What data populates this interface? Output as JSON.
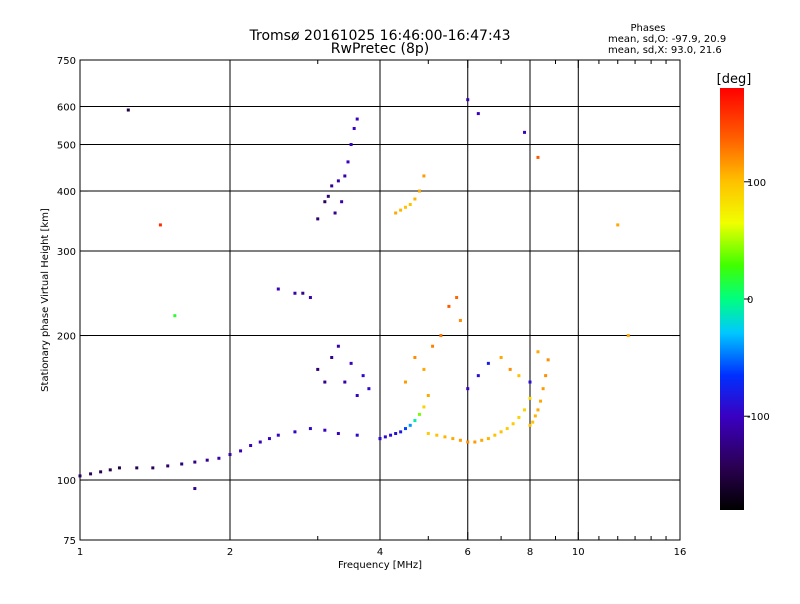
{
  "header": {
    "title_line1": "Tromsø 20161025 16:46:00-16:47:43",
    "title_line2": "RwPretec (8p)",
    "stats_title": "Phases",
    "stats_line1": "mean, sd,O: -97.9, 20.9",
    "stats_line2": "mean, sd,X:  93.0, 21.6"
  },
  "colorbar": {
    "label": "[deg]",
    "ticks": [
      {
        "value": 100,
        "label": "100"
      },
      {
        "value": 0,
        "label": "0"
      },
      {
        "value": -100,
        "label": "-100"
      }
    ],
    "range": [
      -180,
      180
    ]
  },
  "chart_data": {
    "type": "scatter",
    "title": "Tromsø 20161025 16:46:00-16:47:43",
    "subtitle": "RwPretec (8p)",
    "xlabel": "Frequency [MHz]",
    "ylabel": "Stationary phase Virtual Height [km]",
    "x_scale": "log",
    "y_scale": "log",
    "xlim": [
      1,
      16
    ],
    "ylim": [
      75,
      750
    ],
    "xticks": [
      {
        "value": 1,
        "label": "1"
      },
      {
        "value": 2,
        "label": "2"
      },
      {
        "value": 4,
        "label": "4"
      },
      {
        "value": 6,
        "label": "6"
      },
      {
        "value": 8,
        "label": "8"
      },
      {
        "value": 10,
        "label": "10"
      },
      {
        "value": 16,
        "label": "16"
      }
    ],
    "yticks": [
      {
        "value": 75,
        "label": "75"
      },
      {
        "value": 100,
        "label": "100"
      },
      {
        "value": 200,
        "label": "200"
      },
      {
        "value": 300,
        "label": "300"
      },
      {
        "value": 400,
        "label": "400"
      },
      {
        "value": 500,
        "label": "500"
      },
      {
        "value": 600,
        "label": "600"
      },
      {
        "value": 750,
        "label": "750"
      }
    ],
    "x_minor_ticks": [
      3,
      5,
      7,
      9,
      11,
      12,
      13,
      14,
      15
    ],
    "x_gridlines": [
      2,
      4,
      6,
      8,
      10
    ],
    "y_gridlines": [
      100,
      200,
      300,
      400,
      500,
      600
    ],
    "color_by": "phase_deg",
    "series": [
      {
        "x": [
          1.0,
          1.05,
          1.1,
          1.15,
          1.2,
          1.3,
          1.4,
          1.5,
          1.6,
          1.7,
          1.8,
          1.9,
          2.0,
          2.1,
          2.2,
          2.3,
          2.4,
          2.5,
          2.7,
          2.9,
          3.1,
          3.3,
          3.6,
          4.0
        ],
        "y": [
          102,
          103,
          104,
          105,
          106,
          106,
          106,
          107,
          108,
          109,
          110,
          111,
          113,
          115,
          118,
          120,
          122,
          124,
          126,
          128,
          127,
          125,
          124,
          122
        ],
        "phase": [
          -140,
          -140,
          -145,
          -150,
          -150,
          -145,
          -140,
          -135,
          -130,
          -125,
          -120,
          -110,
          -110,
          -105,
          -105,
          -105,
          -100,
          -100,
          -100,
          -95,
          -100,
          -100,
          -95,
          -100
        ]
      },
      {
        "x": [
          2.5,
          2.7,
          2.8,
          2.9,
          3.0,
          3.1,
          3.15,
          3.2,
          3.25,
          3.3,
          3.35,
          3.4,
          3.45,
          3.5,
          3.55,
          3.6
        ],
        "y": [
          250,
          245,
          245,
          240,
          350,
          380,
          390,
          410,
          360,
          420,
          380,
          430,
          460,
          500,
          540,
          565
        ],
        "phase": [
          -100,
          -110,
          -120,
          -110,
          -130,
          -140,
          -130,
          -120,
          -120,
          -110,
          -110,
          -110,
          -100,
          -100,
          -100,
          -100
        ]
      },
      {
        "x": [
          3.0,
          3.1,
          3.2,
          3.3,
          3.4,
          3.5,
          3.6,
          3.7,
          3.8
        ],
        "y": [
          170,
          160,
          180,
          190,
          160,
          175,
          150,
          165,
          155
        ],
        "phase": [
          -130,
          -120,
          -120,
          -110,
          -110,
          -100,
          -100,
          -95,
          -95
        ]
      },
      {
        "x": [
          4.0,
          4.1,
          4.2,
          4.3,
          4.4,
          4.5,
          4.6,
          4.7,
          4.8,
          4.9,
          5.0
        ],
        "y": [
          122,
          123,
          124,
          125,
          126,
          128,
          130,
          133,
          137,
          142,
          150
        ],
        "phase": [
          -95,
          -95,
          -90,
          -90,
          -80,
          -60,
          -40,
          -10,
          40,
          90,
          110
        ]
      },
      {
        "x": [
          4.3,
          4.4,
          4.5,
          4.6,
          4.7,
          4.8,
          4.9
        ],
        "y": [
          360,
          365,
          370,
          375,
          385,
          400,
          430
        ],
        "phase": [
          110,
          105,
          100,
          100,
          105,
          110,
          115
        ]
      },
      {
        "x": [
          4.5,
          4.7,
          4.9,
          5.1,
          5.3,
          5.5,
          5.7,
          5.8
        ],
        "y": [
          160,
          180,
          170,
          190,
          200,
          230,
          240,
          215
        ],
        "phase": [
          115,
          120,
          110,
          125,
          130,
          140,
          135,
          120
        ]
      },
      {
        "x": [
          5.0,
          5.2,
          5.4,
          5.6,
          5.8,
          6.0,
          6.2,
          6.4,
          6.6,
          6.8,
          7.0,
          7.2,
          7.4,
          7.6,
          7.8,
          8.0
        ],
        "y": [
          125,
          124,
          123,
          122,
          121,
          120,
          120,
          121,
          122,
          124,
          126,
          128,
          131,
          135,
          140,
          148
        ],
        "phase": [
          95,
          100,
          105,
          110,
          115,
          120,
          115,
          110,
          105,
          100,
          100,
          95,
          95,
          90,
          90,
          85
        ]
      },
      {
        "x": [
          8.0,
          8.1,
          8.2,
          8.3,
          8.4,
          8.5,
          8.6,
          8.7
        ],
        "y": [
          130,
          132,
          136,
          140,
          146,
          155,
          165,
          178
        ],
        "phase": [
          100,
          100,
          105,
          110,
          110,
          115,
          120,
          120
        ]
      },
      {
        "x": [
          6.0,
          6.3,
          6.6,
          7.0,
          7.3,
          7.6,
          8.0,
          8.3
        ],
        "y": [
          155,
          165,
          175,
          180,
          170,
          165,
          160,
          185
        ],
        "phase": [
          -100,
          -90,
          -80,
          110,
          120,
          100,
          -90,
          110
        ]
      },
      {
        "x": [
          1.25,
          1.45,
          1.55,
          1.7,
          6.3,
          6.0,
          7.8,
          8.3,
          12.0,
          12.6
        ],
        "y": [
          590,
          340,
          220,
          96,
          580,
          620,
          530,
          470,
          340,
          200
        ],
        "phase": [
          -150,
          160,
          20,
          -120,
          -100,
          -110,
          -100,
          140,
          110,
          110
        ]
      }
    ]
  }
}
